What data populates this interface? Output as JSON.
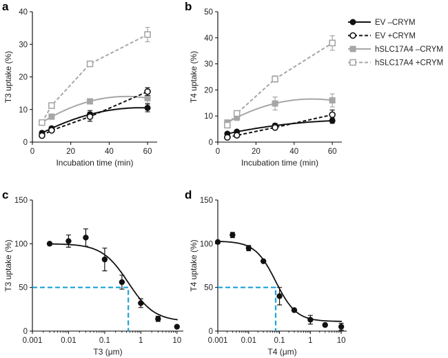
{
  "chart_data": [
    {
      "panel": "a",
      "type": "line",
      "xlabel": "Incubation time (min)",
      "ylabel": "T3 uptake (%)",
      "xlim": [
        0,
        65
      ],
      "ylim": [
        0,
        40
      ],
      "xticks": [
        0,
        20,
        40,
        60
      ],
      "yticks": [
        0,
        10,
        20,
        30,
        40
      ],
      "x": [
        5,
        10,
        30,
        60
      ],
      "series": [
        {
          "name": "EV –CRYM",
          "values": [
            2.8,
            4.2,
            8.5,
            10.5
          ],
          "err": [
            0.5,
            0.6,
            1.2,
            1.2
          ],
          "fit": "curve"
        },
        {
          "name": "EV +CRYM",
          "values": [
            2.0,
            3.6,
            7.8,
            15.5
          ],
          "err": [
            0.4,
            0.5,
            1.4,
            1.2
          ],
          "fit": "line"
        },
        {
          "name": "hSLC17A4 –CRYM",
          "values": [
            6.0,
            7.8,
            12.5,
            13.5
          ],
          "err": [
            0.5,
            0.8,
            0.8,
            1.5
          ],
          "fit": "curve"
        },
        {
          "name": "hSLC17A4 +CRYM",
          "values": [
            6.0,
            11.2,
            24.0,
            33.0
          ],
          "err": [
            0.6,
            0.8,
            0.8,
            2.2
          ],
          "fit": "line"
        }
      ]
    },
    {
      "panel": "b",
      "type": "line",
      "xlabel": "Incubation time (min)",
      "ylabel": "T4 uptake (%)",
      "xlim": [
        0,
        65
      ],
      "ylim": [
        0,
        50
      ],
      "xticks": [
        0,
        20,
        40,
        60
      ],
      "yticks": [
        0,
        10,
        20,
        30,
        40,
        50
      ],
      "x": [
        5,
        10,
        30,
        60
      ],
      "series": [
        {
          "name": "EV –CRYM",
          "values": [
            3.2,
            4.0,
            6.3,
            8.2
          ],
          "err": [
            0.5,
            0.6,
            0.8,
            1.0
          ],
          "fit": "curve"
        },
        {
          "name": "EV +CRYM",
          "values": [
            1.8,
            2.6,
            5.6,
            10.5
          ],
          "err": [
            0.4,
            0.5,
            0.8,
            1.8
          ],
          "fit": "line"
        },
        {
          "name": "hSLC17A4 –CRYM",
          "values": [
            7.5,
            9.5,
            14.8,
            16.0
          ],
          "err": [
            1.0,
            1.2,
            2.5,
            2.5
          ],
          "fit": "curve"
        },
        {
          "name": "hSLC17A4 +CRYM",
          "values": [
            6.5,
            11.0,
            24.2,
            38.0
          ],
          "err": [
            1.0,
            1.0,
            1.2,
            2.8
          ],
          "fit": "line"
        }
      ]
    },
    {
      "panel": "c",
      "type": "scatter",
      "xlabel": "T3 (μm)",
      "ylabel": "T3 uptake (%)",
      "xscale": "log",
      "xlim": [
        0.001,
        15
      ],
      "ylim": [
        0,
        150
      ],
      "xticks": [
        0.001,
        0.01,
        0.1,
        1,
        10
      ],
      "xtick_labels": [
        "0.001",
        "0.01",
        "0.1",
        "1",
        "10"
      ],
      "yticks": [
        0,
        50,
        100,
        150
      ],
      "x": [
        0.003,
        0.01,
        0.03,
        0.1,
        0.3,
        1,
        3,
        10
      ],
      "values": [
        100,
        103,
        107,
        82,
        56,
        32,
        14,
        5
      ],
      "err": [
        0,
        7,
        10,
        13,
        8,
        5,
        3,
        0
      ],
      "fit": {
        "top": 100,
        "bottom": 11,
        "ic50": 0.45,
        "hill": 1.2
      },
      "ic50_marker": 0.45
    },
    {
      "panel": "d",
      "type": "scatter",
      "xlabel": "T4 (μm)",
      "ylabel": "T4 uptake (%)",
      "xscale": "log",
      "xlim": [
        0.001,
        15
      ],
      "ylim": [
        0,
        150
      ],
      "xticks": [
        0.001,
        0.01,
        0.1,
        1,
        10
      ],
      "xtick_labels": [
        "0.001",
        "0.01",
        "0.1",
        "1",
        "10"
      ],
      "yticks": [
        0,
        50,
        100,
        150
      ],
      "x": [
        0.001,
        0.003,
        0.01,
        0.03,
        0.1,
        0.3,
        1,
        3,
        10
      ],
      "values": [
        102,
        110,
        95,
        80,
        40,
        24,
        13,
        7,
        5
      ],
      "err": [
        0,
        3,
        3,
        0,
        10,
        0,
        5,
        0,
        4
      ],
      "fit": {
        "top": 103,
        "bottom": 11,
        "ic50": 0.075,
        "hill": 1.3
      },
      "ic50_marker": 0.075
    }
  ],
  "legend": [
    {
      "label": "EV –CRYM",
      "color": "#111111",
      "marker": "filled-circle",
      "dashed": false
    },
    {
      "label": "EV +CRYM",
      "color": "#111111",
      "marker": "open-circle",
      "dashed": true
    },
    {
      "label": "hSLC17A4 –CRYM",
      "color": "#a6a6a6",
      "marker": "filled-square",
      "dashed": false
    },
    {
      "label": "hSLC17A4 +CRYM",
      "color": "#a6a6a6",
      "marker": "open-square",
      "dashed": true
    }
  ],
  "colors": {
    "black": "#111111",
    "gray": "#a6a6a6",
    "ic50_line": "#1ba1d8"
  }
}
